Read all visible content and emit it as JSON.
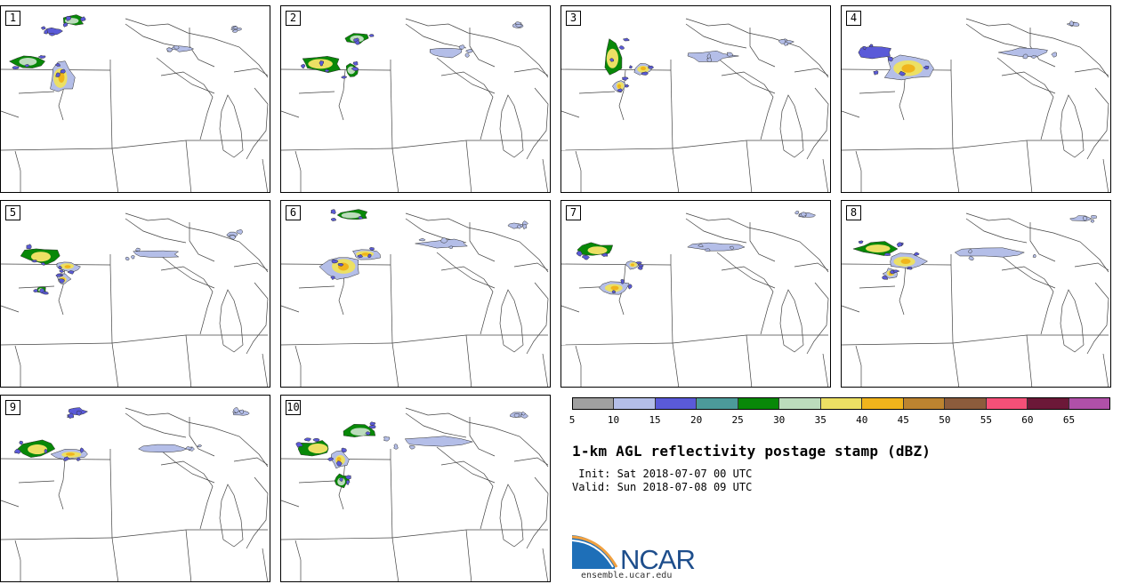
{
  "panels": [
    {
      "label": "1"
    },
    {
      "label": "2"
    },
    {
      "label": "3"
    },
    {
      "label": "4"
    },
    {
      "label": "5"
    },
    {
      "label": "6"
    },
    {
      "label": "7"
    },
    {
      "label": "8"
    },
    {
      "label": "9"
    },
    {
      "label": "10"
    }
  ],
  "legend": {
    "colors": [
      "#a0a0a0",
      "#b4bee8",
      "#5a5ad8",
      "#4c9a9a",
      "#088808",
      "#bcdcbc",
      "#ece064",
      "#f0b41c",
      "#bc8430",
      "#8c5c3c",
      "#f45078",
      "#6c1838",
      "#b050a8"
    ],
    "ticks": [
      "5",
      "10",
      "15",
      "20",
      "25",
      "30",
      "35",
      "40",
      "45",
      "50",
      "55",
      "60",
      "65"
    ]
  },
  "title": "1-km AGL reflectivity postage stamp (dBZ)",
  "init": " Init: Sat 2018-07-07 00 UTC",
  "valid": "Valid: Sun 2018-07-08 09 UTC",
  "logo": {
    "text": "NCAR",
    "url": "ensemble.ucar.edu",
    "colors": {
      "blue": "#1e6fb8",
      "orange": "#e88a2a",
      "navy": "#1e4e8c"
    }
  }
}
